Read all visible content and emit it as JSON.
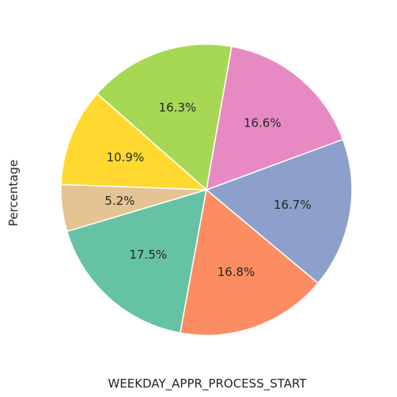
{
  "chart_data": {
    "type": "pie",
    "xlabel": "WEEKDAY_APPR_PROCESS_START",
    "ylabel": "Percentage",
    "slices": [
      {
        "label_text": "16.3%",
        "value": 16.3,
        "color": "#a6d854"
      },
      {
        "label_text": "10.9%",
        "value": 10.9,
        "color": "#ffd92f"
      },
      {
        "label_text": "5.2%",
        "value": 5.2,
        "color": "#e5c494"
      },
      {
        "label_text": "17.5%",
        "value": 17.5,
        "color": "#66c2a5"
      },
      {
        "label_text": "16.8%",
        "value": 16.8,
        "color": "#fc8d62"
      },
      {
        "label_text": "16.7%",
        "value": 16.7,
        "color": "#8da0cb"
      },
      {
        "label_text": "16.6%",
        "value": 16.6,
        "color": "#e78ac3"
      }
    ]
  }
}
